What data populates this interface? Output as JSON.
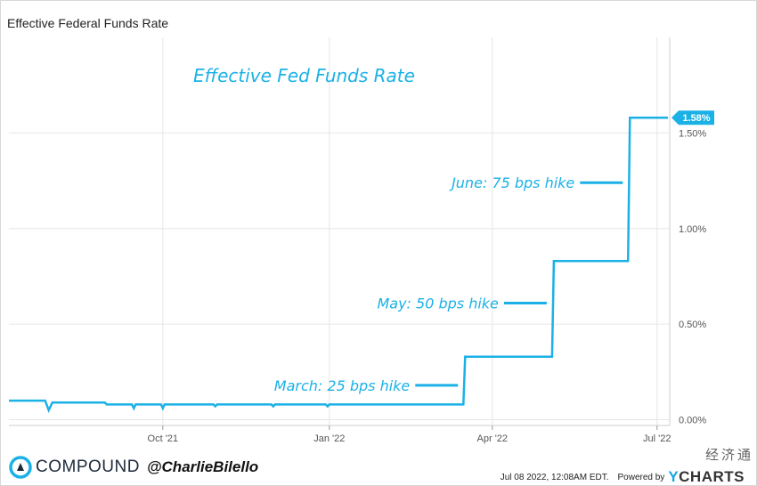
{
  "header": {
    "title": "Effective Federal Funds Rate"
  },
  "chart_data": {
    "type": "line",
    "title": "Effective Fed Funds Rate",
    "xlabel": "",
    "ylabel": "",
    "ylim": [
      -0.03,
      2.0
    ],
    "y_ticks": [
      "0.00%",
      "0.50%",
      "1.00%",
      "1.50%"
    ],
    "y_tick_values": [
      0,
      0.5,
      1.0,
      1.5
    ],
    "x_ticks": [
      "Oct '21",
      "Jan '22",
      "Apr '22",
      "Jul '22"
    ],
    "x_tick_dates": [
      "2021-10-01",
      "2022-01-01",
      "2022-04-01",
      "2022-07-01"
    ],
    "x_range": [
      "2021-07-08",
      "2022-07-08"
    ],
    "grid": true,
    "last_value_label": "1.58%",
    "series": [
      {
        "color": "#1bb1e6",
        "points": [
          [
            "2021-07-08",
            0.1
          ],
          [
            "2021-07-28",
            0.1
          ],
          [
            "2021-07-30",
            0.05
          ],
          [
            "2021-08-01",
            0.09
          ],
          [
            "2021-08-30",
            0.09
          ],
          [
            "2021-08-31",
            0.08
          ],
          [
            "2021-09-14",
            0.08
          ],
          [
            "2021-09-15",
            0.06
          ],
          [
            "2021-09-16",
            0.08
          ],
          [
            "2021-09-30",
            0.08
          ],
          [
            "2021-10-01",
            0.06
          ],
          [
            "2021-10-02",
            0.08
          ],
          [
            "2021-10-29",
            0.08
          ],
          [
            "2021-10-30",
            0.07
          ],
          [
            "2021-10-31",
            0.08
          ],
          [
            "2021-11-30",
            0.08
          ],
          [
            "2021-12-01",
            0.07
          ],
          [
            "2021-12-02",
            0.08
          ],
          [
            "2021-12-30",
            0.08
          ],
          [
            "2021-12-31",
            0.07
          ],
          [
            "2022-01-01",
            0.08
          ],
          [
            "2022-03-16",
            0.08
          ],
          [
            "2022-03-17",
            0.33
          ],
          [
            "2022-05-04",
            0.33
          ],
          [
            "2022-05-05",
            0.83
          ],
          [
            "2022-06-15",
            0.83
          ],
          [
            "2022-06-16",
            1.58
          ],
          [
            "2022-07-07",
            1.58
          ]
        ]
      }
    ],
    "annotations": [
      {
        "text": "March: 25 bps hike",
        "date": "2022-03-17",
        "value": 0.18
      },
      {
        "text": "May: 50 bps hike",
        "date": "2022-05-05",
        "value": 0.61
      },
      {
        "text": "June: 75 bps hike",
        "date": "2022-06-16",
        "value": 1.24
      }
    ]
  },
  "footer": {
    "brand": "COMPOUND",
    "handle": "@CharlieBilello",
    "timestamp": "Jul 08 2022, 12:08AM EDT.",
    "powered_by": "Powered by",
    "ycharts_y": "Y",
    "ycharts_rest": "CHARTS",
    "watermark": "经济通"
  }
}
